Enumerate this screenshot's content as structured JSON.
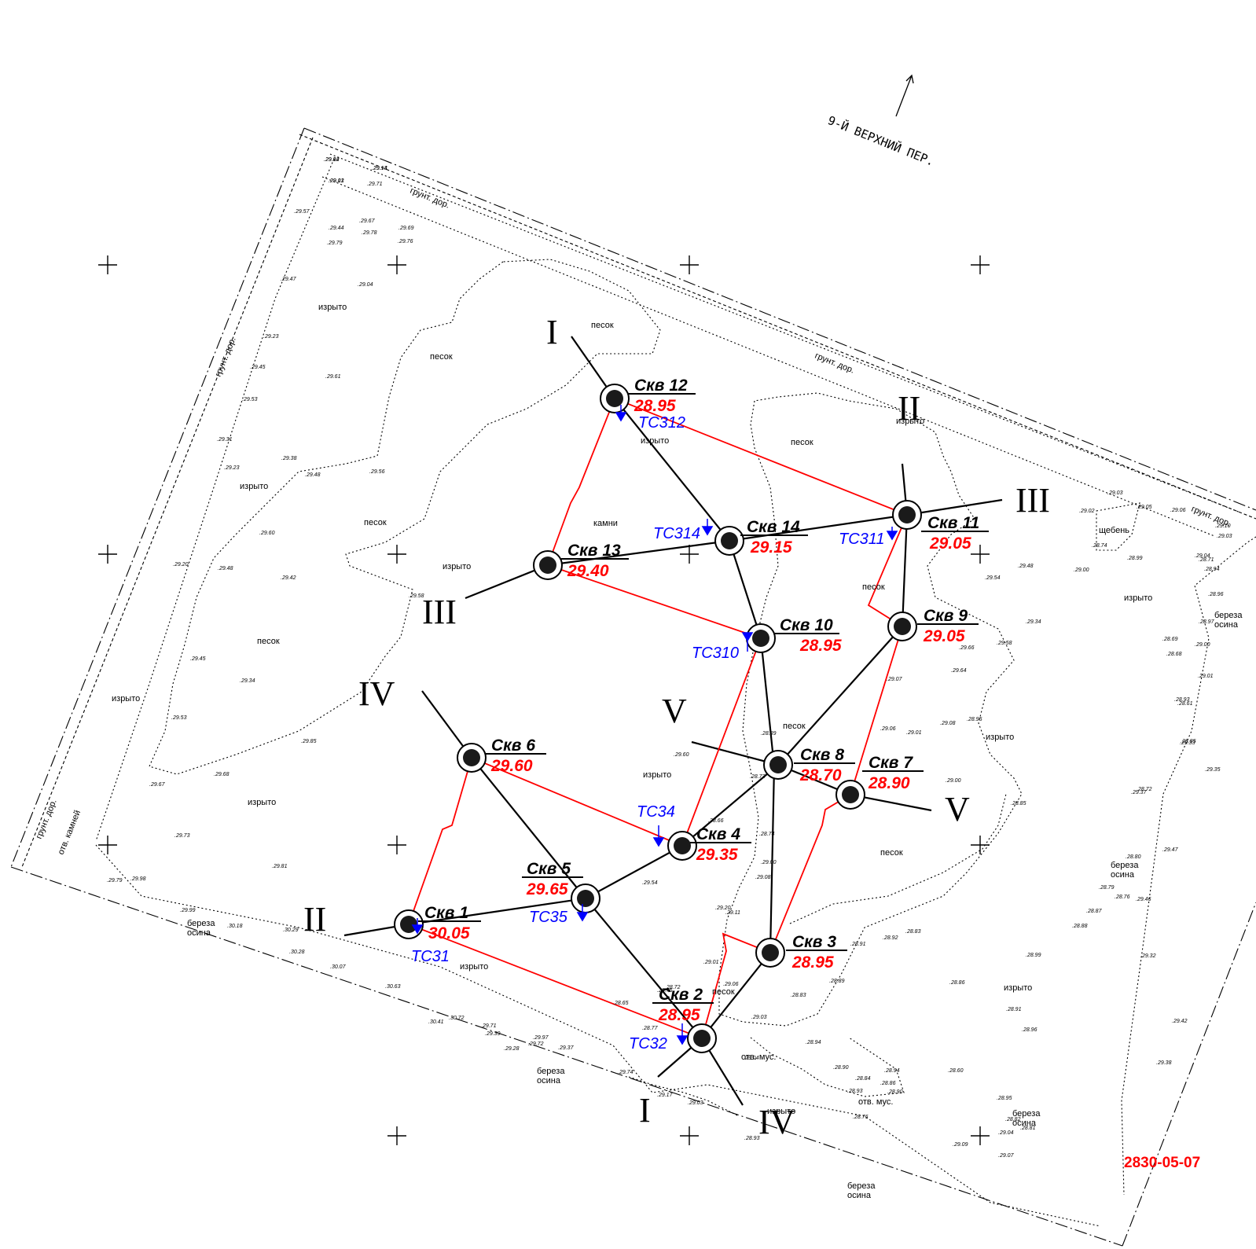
{
  "street": {
    "label": "9-Й ВЕРХНИЙ ПЕР."
  },
  "drawing_code": "2830-05-07",
  "colors": {
    "line": "#000000",
    "elevation": "#ff0000",
    "test_point": "#0000ff",
    "section_red": "#ff0000"
  },
  "wells": [
    {
      "id": "1",
      "label": "Скв 1",
      "elevation": "30.05"
    },
    {
      "id": "2",
      "label": "Скв 2",
      "elevation": "28.95"
    },
    {
      "id": "3",
      "label": "Скв 3",
      "elevation": "28.95"
    },
    {
      "id": "4",
      "label": "Скв 4",
      "elevation": "29.35"
    },
    {
      "id": "5",
      "label": "Скв 5",
      "elevation": "29.65"
    },
    {
      "id": "6",
      "label": "Скв 6",
      "elevation": "29.60"
    },
    {
      "id": "7",
      "label": "Скв 7",
      "elevation": "28.90"
    },
    {
      "id": "8",
      "label": "Скв 8",
      "elevation": "28.70"
    },
    {
      "id": "9",
      "label": "Скв 9",
      "elevation": "29.05"
    },
    {
      "id": "10",
      "label": "Скв 10",
      "elevation": "28.95"
    },
    {
      "id": "11",
      "label": "Скв 11",
      "elevation": "29.05"
    },
    {
      "id": "12",
      "label": "Скв 12",
      "elevation": "28.95"
    },
    {
      "id": "13",
      "label": "Скв 13",
      "elevation": "29.40"
    },
    {
      "id": "14",
      "label": "Скв 14",
      "elevation": "29.15"
    }
  ],
  "test_points": [
    "ТС31",
    "ТС32",
    "ТС34",
    "ТС35",
    "ТС310",
    "ТС311",
    "ТС312",
    "ТС314"
  ],
  "section_labels": [
    "I",
    "I",
    "II",
    "II",
    "III",
    "III",
    "IV",
    "IV",
    "V",
    "V"
  ],
  "terrain_labels": {
    "izryto": "изрыто",
    "pesok": "песок",
    "grunt_dor": "грунт. дор.",
    "shcheben": "щебень",
    "kamni": "камни",
    "otv_mus": "отв. мус.",
    "bereza": "береза",
    "osina": "осина",
    "otv_kamnej": "отв. камней"
  },
  "spot_heights": [
    "29.14",
    "29.14",
    "29.13",
    "29.71",
    "29.57",
    "29.44",
    "29.67",
    "29.69",
    "29.79",
    "29.78",
    "29.76",
    "29.47",
    "29.04",
    "29.23",
    "29.61",
    "29.45",
    "29.53",
    "29.31",
    "29.23",
    "29.38",
    "29.48",
    "29.56",
    "29.60",
    "29.48",
    "29.20",
    "29.42",
    "29.58",
    "29.45",
    "29.34",
    "29.53",
    "29.67",
    "29.68",
    "29.85",
    "29.73",
    "29.81",
    "29.79",
    "29.98",
    "29.99",
    "30.18",
    "30.29",
    "30.28",
    "30.07",
    "30.63",
    "30.41",
    "30.72",
    "29.71",
    "29.39",
    "29.28",
    "29.97",
    "29.72",
    "29.37",
    "29.74",
    "29.17",
    "29.03",
    "28.65",
    "28.77",
    "28.75",
    "28.72",
    "28.66",
    "28.89",
    "28.73",
    "28.74",
    "29.00",
    "29.08",
    "29.11",
    "29.06",
    "29.01",
    "29.20",
    "29.54",
    "29.60",
    "29.04",
    "28.93",
    "29.03",
    "28.90",
    "28.94",
    "28.93",
    "28.86",
    "28.90",
    "28.94",
    "28.84",
    "28.76",
    "28.83",
    "28.89",
    "28.91",
    "28.92",
    "28.83",
    "28.86",
    "28.60",
    "29.09",
    "29.07",
    "29.04",
    "28.82",
    "28.81",
    "28.95",
    "28.96",
    "28.91",
    "28.99",
    "28.88",
    "28.87",
    "28.76",
    "28.79",
    "28.80",
    "28.72",
    "28.85",
    "28.61",
    "28.68",
    "28.69",
    "28.71",
    "28.74",
    "29.00",
    "28.99",
    "29.02",
    "29.03",
    "29.05",
    "29.06",
    "29.04",
    "29.03",
    "29.10",
    "28.94",
    "28.96",
    "28.97",
    "29.00",
    "29.01",
    "28.93",
    "29.33",
    "29.35",
    "29.37",
    "29.47",
    "29.46",
    "29.32",
    "29.42",
    "29.38",
    "29.54",
    "29.48",
    "29.34",
    "29.66",
    "29.58",
    "29.64",
    "29.07",
    "29.06",
    "29.01",
    "29.08",
    "28.95",
    "28.85",
    "29.00",
    "29.92",
    "29.13",
    "29.01"
  ]
}
